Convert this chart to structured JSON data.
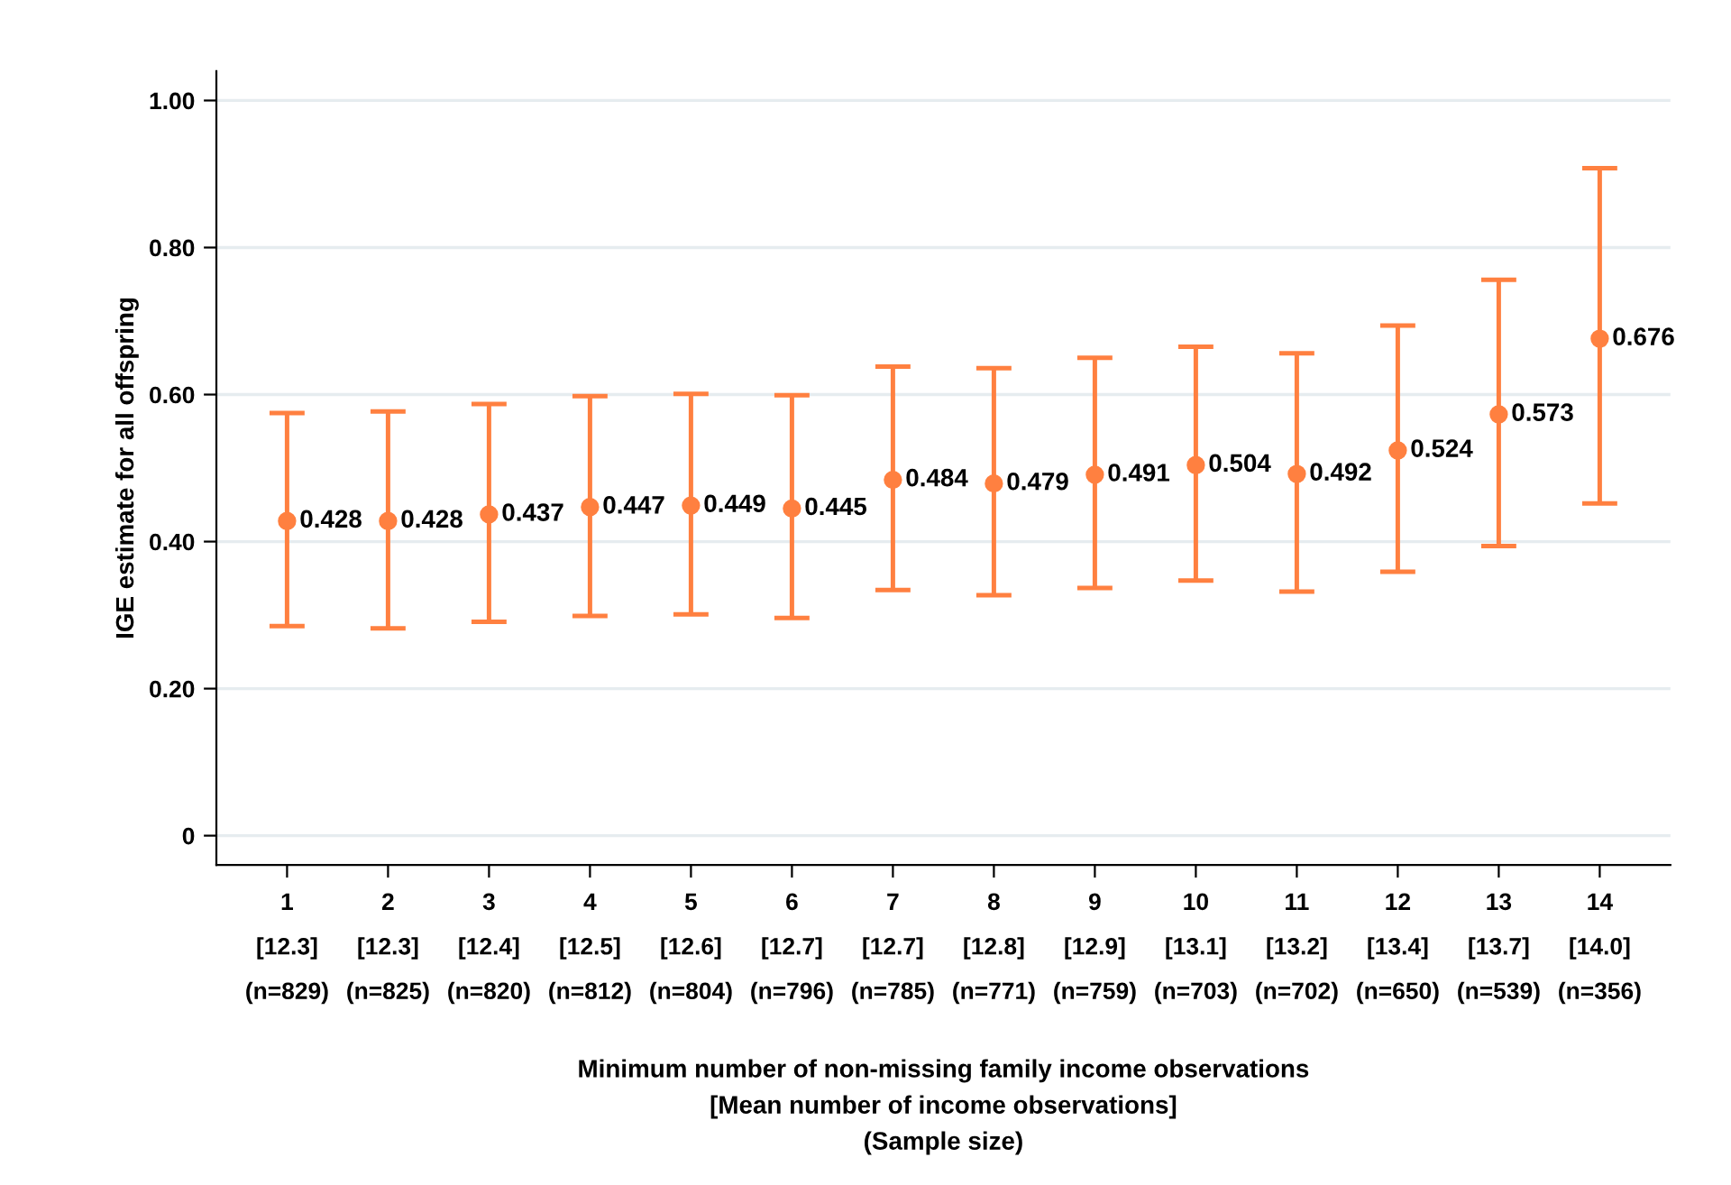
{
  "chart_data": {
    "type": "scatter",
    "categories": [
      "1\n[12.3]\n(n=829)",
      "2\n[12.3]\n(n=825)",
      "3\n[12.4]\n(n=820)",
      "4\n[12.5]\n(n=812)",
      "5\n[12.6]\n(n=804)",
      "6\n[12.7]\n(n=796)",
      "7\n[12.7]\n(n=785)",
      "8\n[12.8]\n(n=771)",
      "9\n[12.9]\n(n=759)",
      "10\n[13.1]\n(n=703)",
      "11\n[13.2]\n(n=702)",
      "12\n[13.4]\n(n=650)",
      "13\n[13.7]\n(n=539)",
      "14\n[14.0]\n(n=356)"
    ],
    "values": [
      0.428,
      0.428,
      0.437,
      0.447,
      0.449,
      0.445,
      0.484,
      0.479,
      0.491,
      0.504,
      0.492,
      0.524,
      0.573,
      0.676
    ],
    "errors": [
      [
        0.285,
        0.575
      ],
      [
        0.282,
        0.577
      ],
      [
        0.291,
        0.587
      ],
      [
        0.299,
        0.598
      ],
      [
        0.301,
        0.601
      ],
      [
        0.296,
        0.599
      ],
      [
        0.334,
        0.638
      ],
      [
        0.327,
        0.636
      ],
      [
        0.337,
        0.65
      ],
      [
        0.347,
        0.665
      ],
      [
        0.332,
        0.656
      ],
      [
        0.359,
        0.694
      ],
      [
        0.394,
        0.756
      ],
      [
        0.452,
        0.908
      ]
    ],
    "color": "#ff8040",
    "marker": "circle",
    "data_labels": true,
    "xlabel": "Minimum number of non-missing family income observations\n[Mean number of income observations]\n(Sample size)",
    "ylabel": "IGE estimate for all offspring",
    "ylim": [
      -0.04,
      1.04
    ],
    "yticks": [
      {
        "value": 0,
        "label": "0"
      },
      {
        "value": 0.2,
        "label": "0.20"
      },
      {
        "value": 0.4,
        "label": "0.40"
      },
      {
        "value": 0.6,
        "label": "0.60"
      },
      {
        "value": 0.8,
        "label": "0.80"
      },
      {
        "value": 1.0,
        "label": "1.00"
      }
    ],
    "grid": "y"
  }
}
